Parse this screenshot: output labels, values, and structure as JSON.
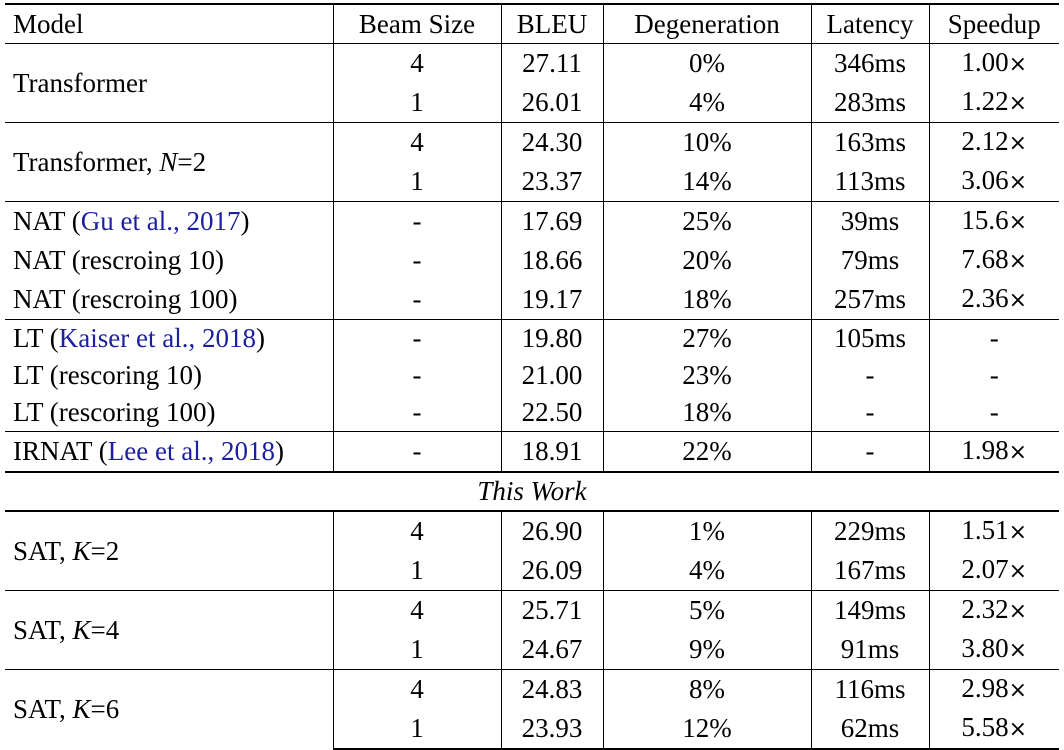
{
  "columns": [
    "Model",
    "Beam Size",
    "BLEU",
    "Degeneration",
    "Latency",
    "Speedup"
  ],
  "section_label": "This Work",
  "groups": [
    {
      "model": "Transformer",
      "model_suffix": "",
      "cite": "",
      "rows": [
        {
          "beam": "4",
          "bleu": "27.11",
          "deg": "0%",
          "lat": "346ms",
          "spd": "1.00"
        },
        {
          "beam": "1",
          "bleu": "26.01",
          "deg": "4%",
          "lat": "283ms",
          "spd": "1.22"
        }
      ]
    },
    {
      "model": "Transformer, ",
      "model_var": "N",
      "model_suffix": "=2",
      "rows": [
        {
          "beam": "4",
          "bleu": "24.30",
          "deg": "10%",
          "lat": "163ms",
          "spd": "2.12"
        },
        {
          "beam": "1",
          "bleu": "23.37",
          "deg": "14%",
          "lat": "113ms",
          "spd": "3.06"
        }
      ]
    },
    {
      "rows": [
        {
          "model": "NAT (",
          "cite": "Gu et al., 2017",
          "model_tail": ")",
          "beam": "-",
          "bleu": "17.69",
          "deg": "25%",
          "lat": "39ms",
          "spd": "15.6"
        },
        {
          "model": "NAT (rescroing 10)",
          "beam": "-",
          "bleu": "18.66",
          "deg": "20%",
          "lat": "79ms",
          "spd": "7.68"
        },
        {
          "model": "NAT (rescroing 100)",
          "beam": "-",
          "bleu": "19.17",
          "deg": "18%",
          "lat": "257ms",
          "spd": "2.36"
        }
      ]
    },
    {
      "rows": [
        {
          "model": "LT (",
          "cite": "Kaiser et al., 2018",
          "model_tail": ")",
          "beam": "-",
          "bleu": "19.80",
          "deg": "27%",
          "lat": "105ms",
          "spd": "-"
        },
        {
          "model": "LT (rescoring 10)",
          "beam": "-",
          "bleu": "21.00",
          "deg": "23%",
          "lat": "-",
          "spd": "-"
        },
        {
          "model": "LT (rescoring 100)",
          "beam": "-",
          "bleu": "22.50",
          "deg": "18%",
          "lat": "-",
          "spd": "-"
        }
      ]
    },
    {
      "rows": [
        {
          "model": "IRNAT (",
          "cite": "Lee et al., 2018",
          "model_tail": ")",
          "beam": "-",
          "bleu": "18.91",
          "deg": "22%",
          "lat": "-",
          "spd": "1.98"
        }
      ]
    },
    {
      "model": "SAT, ",
      "model_var": "K",
      "model_suffix": "=2",
      "rows": [
        {
          "beam": "4",
          "bleu": "26.90",
          "deg": "1%",
          "lat": "229ms",
          "spd": "1.51"
        },
        {
          "beam": "1",
          "bleu": "26.09",
          "deg": "4%",
          "lat": "167ms",
          "spd": "2.07"
        }
      ]
    },
    {
      "model": "SAT, ",
      "model_var": "K",
      "model_suffix": "=4",
      "rows": [
        {
          "beam": "4",
          "bleu": "25.71",
          "deg": "5%",
          "lat": "149ms",
          "spd": "2.32"
        },
        {
          "beam": "1",
          "bleu": "24.67",
          "deg": "9%",
          "lat": "91ms",
          "spd": "3.80"
        }
      ]
    },
    {
      "model": "SAT, ",
      "model_var": "K",
      "model_suffix": "=6",
      "rows": [
        {
          "beam": "4",
          "bleu": "24.83",
          "deg": "8%",
          "lat": "116ms",
          "spd": "2.98"
        },
        {
          "beam": "1",
          "bleu": "23.93",
          "deg": "12%",
          "lat": "62ms",
          "spd": "5.58"
        }
      ]
    }
  ],
  "speedup_suffix": "×",
  "link_color": "#1b1fa0"
}
